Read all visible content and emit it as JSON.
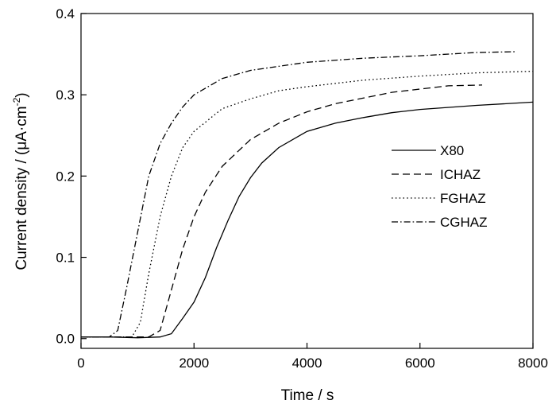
{
  "chart_data": {
    "type": "line",
    "xlabel": "Time / s",
    "ylabel_prefix": "Current density / (",
    "ylabel_unit": "μA·cm",
    "ylabel_exponent": "-2",
    "ylabel_suffix": ")",
    "xlim": [
      0,
      8000
    ],
    "ylim": [
      -0.012,
      0.4
    ],
    "xticks": [
      0,
      2000,
      4000,
      6000,
      8000
    ],
    "yticks": [
      0.0,
      0.1,
      0.2,
      0.3,
      0.4
    ],
    "x_tick_labels": [
      "0",
      "2000",
      "4000",
      "6000",
      "8000"
    ],
    "y_tick_labels": [
      "0.0",
      "0.1",
      "0.2",
      "0.3",
      "0.4"
    ],
    "grid": false,
    "legend_position": "right",
    "series": [
      {
        "name": "X80",
        "dash": "solid",
        "points": [
          [
            0,
            0.002
          ],
          [
            500,
            0.002
          ],
          [
            1000,
            0.001
          ],
          [
            1400,
            0.002
          ],
          [
            1600,
            0.006
          ],
          [
            1800,
            0.025
          ],
          [
            2000,
            0.045
          ],
          [
            2200,
            0.075
          ],
          [
            2400,
            0.112
          ],
          [
            2600,
            0.145
          ],
          [
            2800,
            0.175
          ],
          [
            3000,
            0.198
          ],
          [
            3200,
            0.216
          ],
          [
            3500,
            0.235
          ],
          [
            4000,
            0.255
          ],
          [
            4500,
            0.265
          ],
          [
            5000,
            0.272
          ],
          [
            5500,
            0.278
          ],
          [
            6000,
            0.282
          ],
          [
            7000,
            0.287
          ],
          [
            8000,
            0.291
          ]
        ]
      },
      {
        "name": "ICHAZ",
        "dash": "dashed",
        "points": [
          [
            0,
            0.002
          ],
          [
            500,
            0.002
          ],
          [
            1000,
            0.002
          ],
          [
            1200,
            0.002
          ],
          [
            1400,
            0.01
          ],
          [
            1600,
            0.06
          ],
          [
            1800,
            0.11
          ],
          [
            2000,
            0.15
          ],
          [
            2200,
            0.18
          ],
          [
            2500,
            0.212
          ],
          [
            3000,
            0.245
          ],
          [
            3500,
            0.265
          ],
          [
            4000,
            0.279
          ],
          [
            4500,
            0.289
          ],
          [
            5000,
            0.296
          ],
          [
            5500,
            0.303
          ],
          [
            6000,
            0.307
          ],
          [
            6500,
            0.311
          ],
          [
            7100,
            0.312
          ]
        ]
      },
      {
        "name": "FGHAZ",
        "dash": "dotted",
        "points": [
          [
            0,
            0.002
          ],
          [
            500,
            0.002
          ],
          [
            900,
            0.002
          ],
          [
            1050,
            0.02
          ],
          [
            1200,
            0.08
          ],
          [
            1400,
            0.15
          ],
          [
            1600,
            0.2
          ],
          [
            1800,
            0.235
          ],
          [
            2000,
            0.255
          ],
          [
            2500,
            0.283
          ],
          [
            3000,
            0.295
          ],
          [
            3500,
            0.305
          ],
          [
            4000,
            0.31
          ],
          [
            5000,
            0.318
          ],
          [
            6000,
            0.323
          ],
          [
            7000,
            0.327
          ],
          [
            8000,
            0.329
          ]
        ]
      },
      {
        "name": "CGHAZ",
        "dash": "dashdot",
        "points": [
          [
            0,
            0.002
          ],
          [
            500,
            0.002
          ],
          [
            650,
            0.01
          ],
          [
            800,
            0.06
          ],
          [
            1000,
            0.13
          ],
          [
            1200,
            0.2
          ],
          [
            1400,
            0.24
          ],
          [
            1600,
            0.265
          ],
          [
            1800,
            0.285
          ],
          [
            2000,
            0.3
          ],
          [
            2500,
            0.32
          ],
          [
            3000,
            0.33
          ],
          [
            3500,
            0.335
          ],
          [
            4000,
            0.34
          ],
          [
            5000,
            0.345
          ],
          [
            6000,
            0.348
          ],
          [
            7000,
            0.352
          ],
          [
            7700,
            0.353
          ]
        ]
      }
    ]
  }
}
